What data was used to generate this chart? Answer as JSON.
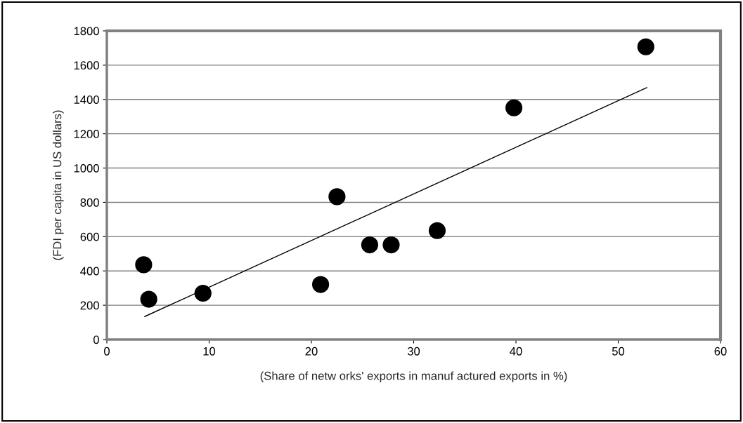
{
  "chart_data": {
    "type": "scatter",
    "xlabel": "(Share of netw orks' exports in manuf actured exports in %)",
    "ylabel": "(FDI per capita in US dollars)",
    "x": [
      3.6,
      4.1,
      9.4,
      20.9,
      22.5,
      25.7,
      27.8,
      32.3,
      39.8,
      52.7
    ],
    "series": [
      {
        "color": "#000000",
        "values": [
          436,
          235,
          270,
          321,
          833,
          552,
          552,
          635,
          1351,
          1707
        ]
      },
      {
        "type": "line",
        "color": "#000000",
        "x": [
          3.7,
          52.8
        ],
        "values": [
          134,
          1469
        ],
        "marker": "none"
      }
    ],
    "marker": "circle",
    "xlim": [
      0,
      60
    ],
    "xticks": [
      0,
      10,
      20,
      30,
      40,
      50,
      60
    ],
    "ylim": [
      0,
      1800
    ],
    "yticks": [
      0,
      200,
      400,
      600,
      800,
      1000,
      1200,
      1400,
      1600,
      1800
    ],
    "grid": "y",
    "legend": false
  }
}
